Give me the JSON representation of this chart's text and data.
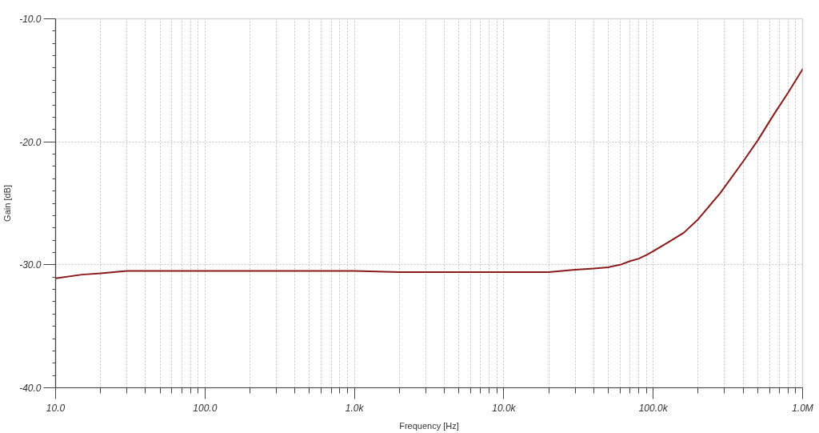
{
  "chart_data": {
    "type": "line",
    "xlabel": "Frequency [Hz]",
    "ylabel": "Gain [dB]",
    "log": "x",
    "x": [
      10,
      15,
      20,
      30,
      50,
      100,
      200,
      500,
      800,
      1000,
      2000,
      4000,
      10000,
      20000,
      30000,
      40000,
      50000,
      60000,
      70000,
      80000,
      90000,
      100000,
      125000,
      160000,
      200000,
      250000,
      280000,
      400000,
      500000,
      640000,
      800000,
      1000000
    ],
    "series": [
      {
        "color": "#8b1a1a",
        "values": [
          -31.1,
          -30.8,
          -30.7,
          -30.5,
          -30.5,
          -30.5,
          -30.5,
          -30.5,
          -30.5,
          -30.5,
          -30.6,
          -30.6,
          -30.6,
          -30.6,
          -30.4,
          -30.3,
          -30.2,
          -30.0,
          -29.7,
          -29.5,
          -29.2,
          -28.9,
          -28.2,
          -27.4,
          -26.3,
          -24.9,
          -24.2,
          -21.6,
          -19.9,
          -17.8,
          -16.0,
          -14.1
        ]
      }
    ],
    "xlim": [
      10,
      1000000
    ],
    "ylim": [
      -40,
      -10
    ],
    "xticks": [
      {
        "value": 10,
        "label": "10.0"
      },
      {
        "value": 100,
        "label": "100.0"
      },
      {
        "value": 1000,
        "label": "1.0k"
      },
      {
        "value": 10000,
        "label": "10.0k"
      },
      {
        "value": 100000,
        "label": "100.0k"
      },
      {
        "value": 1000000,
        "label": "1.0M"
      }
    ],
    "yticks": [
      {
        "value": -40,
        "label": "-40.0"
      },
      {
        "value": -30,
        "label": "-30.0"
      },
      {
        "value": -20,
        "label": "-20.0"
      },
      {
        "value": -10,
        "label": "-10.0"
      }
    ],
    "grid": true
  }
}
